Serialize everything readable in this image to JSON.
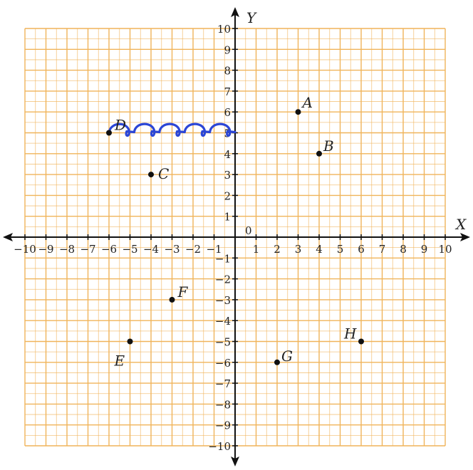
{
  "chart_data": {
    "type": "scatter",
    "title": "",
    "xlabel": "X",
    "ylabel": "Y",
    "origin_label": "0",
    "xlim": [
      -10,
      10
    ],
    "ylim": [
      -10,
      10
    ],
    "grid": true,
    "grid_color": "#f0b45a",
    "axis_color": "#111111",
    "point_color": "#111111",
    "x_ticks": [
      -10,
      -9,
      -8,
      -7,
      -6,
      -5,
      -4,
      -3,
      -2,
      -1,
      1,
      2,
      3,
      4,
      5,
      6,
      7,
      8,
      9,
      10
    ],
    "y_ticks": [
      -10,
      -9,
      -8,
      -7,
      -6,
      -5,
      -4,
      -3,
      -2,
      -1,
      1,
      2,
      3,
      4,
      5,
      6,
      7,
      8,
      9,
      10
    ],
    "points": [
      {
        "label": "A",
        "x": 3,
        "y": 6
      },
      {
        "label": "B",
        "x": 4,
        "y": 4
      },
      {
        "label": "C",
        "x": -4,
        "y": 3
      },
      {
        "label": "D",
        "x": -6,
        "y": 5
      },
      {
        "label": "E",
        "x": -5,
        "y": -5
      },
      {
        "label": "F",
        "x": -3,
        "y": -3
      },
      {
        "label": "G",
        "x": 2,
        "y": -6
      },
      {
        "label": "H",
        "x": 6,
        "y": -5
      }
    ],
    "annotations": [
      {
        "type": "handwritten-loops",
        "color": "#2b46d6",
        "from": [
          -6,
          5
        ],
        "to": [
          0,
          5
        ]
      }
    ]
  }
}
